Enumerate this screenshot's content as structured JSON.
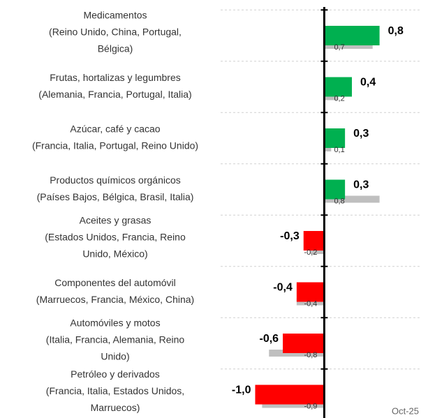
{
  "chart_data": {
    "type": "bar",
    "orientation": "horizontal",
    "categories": [
      [
        "Medicamentos",
        "(Reino Unido, China, Portugal,",
        "Bélgica)"
      ],
      [
        "Frutas, hortalizas y legumbres",
        "(Alemania, Francia, Portugal, Italia)"
      ],
      [
        "Azúcar, café y cacao",
        "(Francia, Italia, Portugal, Reino Unido)"
      ],
      [
        "Productos químicos orgánicos",
        "(Países Bajos, Bélgica, Brasil, Italia)"
      ],
      [
        "Aceites y grasas",
        "(Estados Unidos, Francia, Reino",
        "Unido, México)"
      ],
      [
        "Componentes del automóvil",
        "(Marruecos, Francia, México, China)"
      ],
      [
        "Automóviles y motos",
        "(Italia, Francia, Alemania, Reino",
        "Unido)"
      ],
      [
        "Petróleo y derivados",
        "(Francia, Italia, Estados Unidos,",
        "Marruecos)"
      ]
    ],
    "series": [
      {
        "values": [
          0.8,
          0.4,
          0.3,
          0.3,
          -0.3,
          -0.4,
          -0.6,
          -1.0
        ],
        "value_labels": [
          "0,8",
          "0,4",
          "0,3",
          "0,3",
          "-0,3",
          "-0,4",
          "-0,6",
          "-1,0"
        ],
        "color_positive": "#00b050",
        "color_negative": "#ff0000"
      },
      {
        "values": [
          0.7,
          0.2,
          0.1,
          0.8,
          -0.2,
          -0.4,
          -0.8,
          -0.9
        ],
        "value_labels": [
          "0,7",
          "0,2",
          "0,1",
          "0,8",
          "-0,2",
          "-0,4",
          "-0,8",
          "-0,9"
        ],
        "color": "#bfbfbf"
      }
    ],
    "xlim": [
      -1.5,
      1.4
    ],
    "grid": true,
    "annotation": "Oct-25"
  }
}
